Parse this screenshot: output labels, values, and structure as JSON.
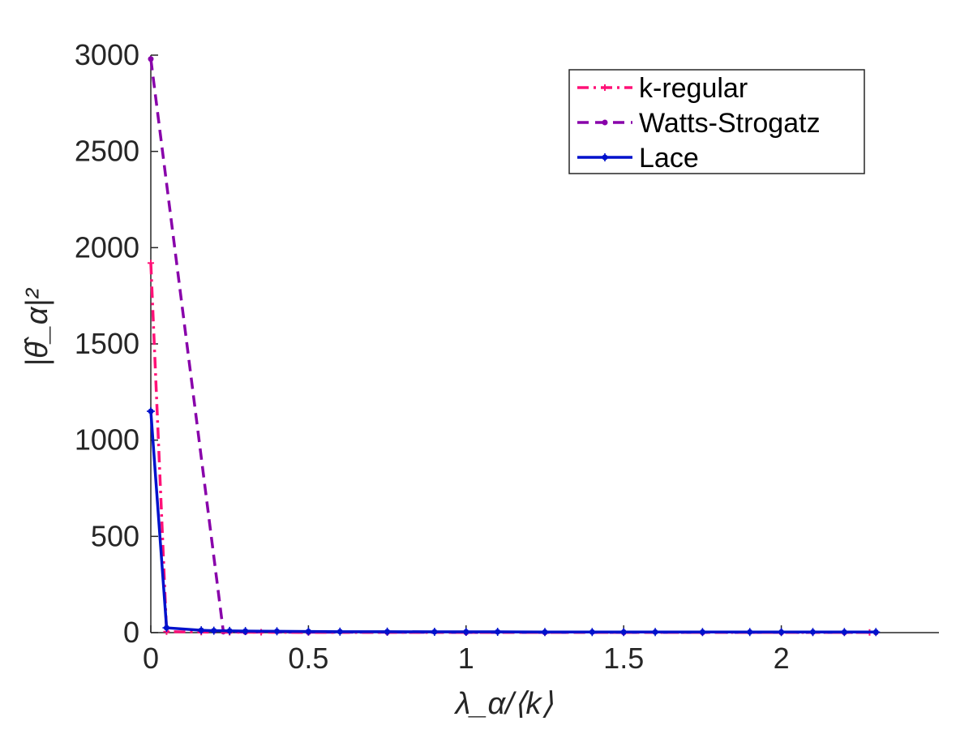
{
  "chart_data": {
    "type": "line",
    "title": "",
    "xlabel": "λ_α/⟨k⟩",
    "ylabel": "|θ̂_α|²",
    "xlim": [
      0,
      2.5
    ],
    "ylim": [
      0,
      3000
    ],
    "xticks": [
      0,
      0.5,
      1,
      1.5,
      2
    ],
    "xtick_labels": [
      "0",
      "0.5",
      "1",
      "1.5",
      "2"
    ],
    "yticks": [
      0,
      500,
      1000,
      1500,
      2000,
      2500,
      3000
    ],
    "ytick_labels": [
      "0",
      "500",
      "1000",
      "1500",
      "2000",
      "2500",
      "3000"
    ],
    "grid": false,
    "legend_position": "top-right",
    "series": [
      {
        "name": "k-regular",
        "color": "#ff1177",
        "line_style": "dash-dot",
        "marker": "plus",
        "x": [
          0.0,
          0.05,
          0.16,
          0.25,
          0.35,
          0.5,
          0.75,
          1.0,
          1.25,
          1.5,
          1.75,
          2.0,
          2.1,
          2.2,
          2.28
        ],
        "y": [
          1920,
          5,
          3,
          2,
          2,
          1,
          1,
          1,
          1,
          1,
          1,
          1,
          1,
          1,
          1
        ]
      },
      {
        "name": "Watts-Strogatz",
        "color": "#8800aa",
        "line_style": "dashed",
        "marker": "dot",
        "x": [
          0.0,
          0.23,
          0.3,
          0.5,
          0.75,
          1.0,
          1.25,
          1.5,
          1.75,
          2.0,
          2.2,
          2.3
        ],
        "y": [
          2980,
          5,
          3,
          2,
          2,
          1,
          1,
          1,
          1,
          1,
          1,
          1
        ]
      },
      {
        "name": "Lace",
        "color": "#0011cc",
        "line_style": "solid",
        "marker": "star",
        "x": [
          0.0,
          0.05,
          0.16,
          0.2,
          0.25,
          0.3,
          0.4,
          0.5,
          0.6,
          0.75,
          0.9,
          1.0,
          1.1,
          1.25,
          1.4,
          1.5,
          1.6,
          1.75,
          1.9,
          2.0,
          2.1,
          2.2,
          2.3
        ],
        "y": [
          1150,
          25,
          12,
          10,
          9,
          8,
          7,
          6,
          5,
          5,
          4,
          4,
          4,
          3,
          3,
          3,
          3,
          3,
          3,
          3,
          3,
          3,
          3
        ]
      }
    ]
  }
}
